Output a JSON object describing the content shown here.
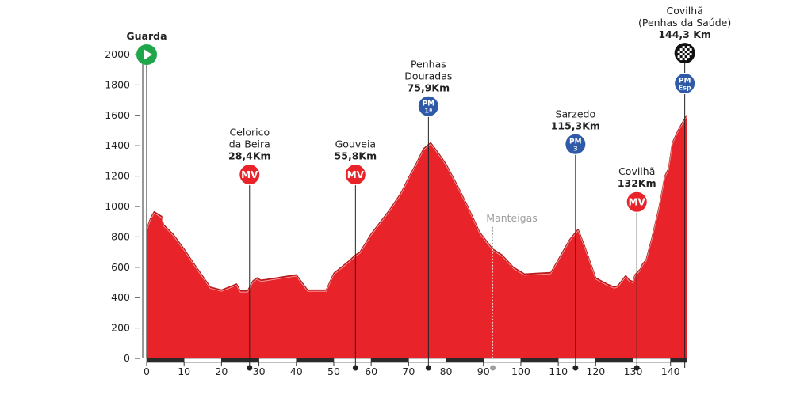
{
  "chart_data": {
    "type": "area",
    "title": "",
    "xlabel": "",
    "ylabel": "",
    "xlim": [
      0,
      144.3
    ],
    "ylim": [
      0,
      2000
    ],
    "x_ticks": [
      0,
      10,
      20,
      30,
      40,
      50,
      60,
      70,
      80,
      90,
      100,
      110,
      120,
      130,
      140
    ],
    "y_ticks": [
      0,
      200,
      400,
      600,
      800,
      1000,
      1200,
      1400,
      1600,
      1800,
      2000
    ],
    "grid": false,
    "fill_color": "#e8232a",
    "line_color": "#b71c1c",
    "profile": [
      [
        0,
        850
      ],
      [
        1,
        920
      ],
      [
        2,
        965
      ],
      [
        4,
        935
      ],
      [
        4.5,
        880
      ],
      [
        7,
        820
      ],
      [
        10,
        720
      ],
      [
        13,
        610
      ],
      [
        17,
        470
      ],
      [
        20,
        450
      ],
      [
        22,
        470
      ],
      [
        24,
        490
      ],
      [
        25,
        445
      ],
      [
        27,
        445
      ],
      [
        28.4,
        510
      ],
      [
        29.5,
        530
      ],
      [
        30.5,
        515
      ],
      [
        32,
        520
      ],
      [
        36,
        535
      ],
      [
        40,
        550
      ],
      [
        43,
        450
      ],
      [
        48,
        450
      ],
      [
        50,
        560
      ],
      [
        54,
        640
      ],
      [
        55.8,
        680
      ],
      [
        57,
        700
      ],
      [
        60,
        820
      ],
      [
        65,
        980
      ],
      [
        68,
        1090
      ],
      [
        70,
        1190
      ],
      [
        72,
        1280
      ],
      [
        74,
        1380
      ],
      [
        75.9,
        1420
      ],
      [
        78,
        1350
      ],
      [
        80,
        1280
      ],
      [
        83,
        1140
      ],
      [
        86,
        990
      ],
      [
        89,
        830
      ],
      [
        92.5,
        720
      ],
      [
        95,
        680
      ],
      [
        98,
        600
      ],
      [
        101,
        555
      ],
      [
        104,
        560
      ],
      [
        108,
        565
      ],
      [
        110,
        650
      ],
      [
        113,
        780
      ],
      [
        115.3,
        850
      ],
      [
        117,
        740
      ],
      [
        120,
        530
      ],
      [
        123,
        490
      ],
      [
        125,
        470
      ],
      [
        126,
        480
      ],
      [
        128,
        545
      ],
      [
        129,
        515
      ],
      [
        130,
        505
      ],
      [
        130.5,
        550
      ],
      [
        132,
        590
      ],
      [
        132.5,
        620
      ],
      [
        133.5,
        650
      ],
      [
        135,
        790
      ],
      [
        137,
        1000
      ],
      [
        138.5,
        1200
      ],
      [
        139.5,
        1250
      ],
      [
        140.5,
        1420
      ],
      [
        142,
        1500
      ],
      [
        144.3,
        1600
      ]
    ],
    "ruler_segments": [
      {
        "from": 0,
        "to": 10,
        "color": "#2a2a2a"
      },
      {
        "from": 10,
        "to": 20,
        "color": "#ffffff"
      },
      {
        "from": 20,
        "to": 30,
        "color": "#2a2a2a"
      },
      {
        "from": 30,
        "to": 40,
        "color": "#ffffff"
      },
      {
        "from": 40,
        "to": 50,
        "color": "#2a2a2a"
      },
      {
        "from": 50,
        "to": 60,
        "color": "#ffffff"
      },
      {
        "from": 60,
        "to": 70,
        "color": "#2a2a2a"
      },
      {
        "from": 70,
        "to": 80,
        "color": "#ffffff"
      },
      {
        "from": 80,
        "to": 90,
        "color": "#2a2a2a"
      },
      {
        "from": 90,
        "to": 100,
        "color": "#ffffff"
      },
      {
        "from": 100,
        "to": 110,
        "color": "#2a2a2a"
      },
      {
        "from": 110,
        "to": 120,
        "color": "#ffffff"
      },
      {
        "from": 120,
        "to": 130,
        "color": "#2a2a2a"
      },
      {
        "from": 130,
        "to": 140,
        "color": "#ffffff"
      },
      {
        "from": 140,
        "to": 144.3,
        "color": "#2a2a2a"
      }
    ],
    "markers": [
      {
        "km": 0,
        "elev": 860,
        "top": 2000,
        "type": "start",
        "color": "#1fa64a",
        "badge": "",
        "badge_sub": "",
        "label_lines": [
          "Guarda"
        ],
        "label_bold": true,
        "dot": false
      },
      {
        "km": 27.5,
        "elev": 470,
        "top": 1210,
        "type": "badge",
        "color": "#e8232a",
        "badge": "MV",
        "badge_sub": "",
        "label_lines": [
          "Celorico",
          "da Beira",
          "28,4Km"
        ],
        "dot": true
      },
      {
        "km": 55.8,
        "elev": 680,
        "top": 1210,
        "type": "badge",
        "color": "#e8232a",
        "badge": "MV",
        "badge_sub": "",
        "label_lines": [
          "Gouveia",
          "55,8Km"
        ],
        "dot": true
      },
      {
        "km": 75.3,
        "elev": 1400,
        "top": 1660,
        "type": "badge",
        "color": "#2e5aa8",
        "badge": "PM",
        "badge_sub": "1ª",
        "label_lines": [
          "Penhas",
          "Douradas",
          "75,9Km"
        ],
        "dot": true
      },
      {
        "km": 114.6,
        "elev": 830,
        "top": 1410,
        "type": "badge",
        "color": "#2e5aa8",
        "badge": "PM",
        "badge_sub": "3",
        "label_lines": [
          "Sarzedo",
          "115,3Km"
        ],
        "dot": true
      },
      {
        "km": 131,
        "elev": 560,
        "top": 1030,
        "type": "badge",
        "color": "#e8232a",
        "badge": "MV",
        "badge_sub": "",
        "label_lines": [
          "Covilhã",
          "132Km"
        ],
        "dot": true
      },
      {
        "km": 143.8,
        "elev": 1600,
        "top": 2010,
        "type": "finish",
        "color": "#111111",
        "badge": "",
        "badge_sub": "",
        "label_lines": [
          "Covilhã",
          "(Penhas da Saúde)",
          "144,3 Km"
        ],
        "dot": false
      },
      {
        "km": 143.8,
        "elev": 1600,
        "top": 1810,
        "type": "badge-only",
        "color": "#2e5aa8",
        "badge": "PM",
        "badge_sub": "Esp",
        "label_lines": [],
        "dot": false
      }
    ],
    "passing_points": [
      {
        "km": 92.5,
        "elev": 720,
        "label": "Manteigas",
        "color": "#9e9e9e"
      }
    ]
  }
}
